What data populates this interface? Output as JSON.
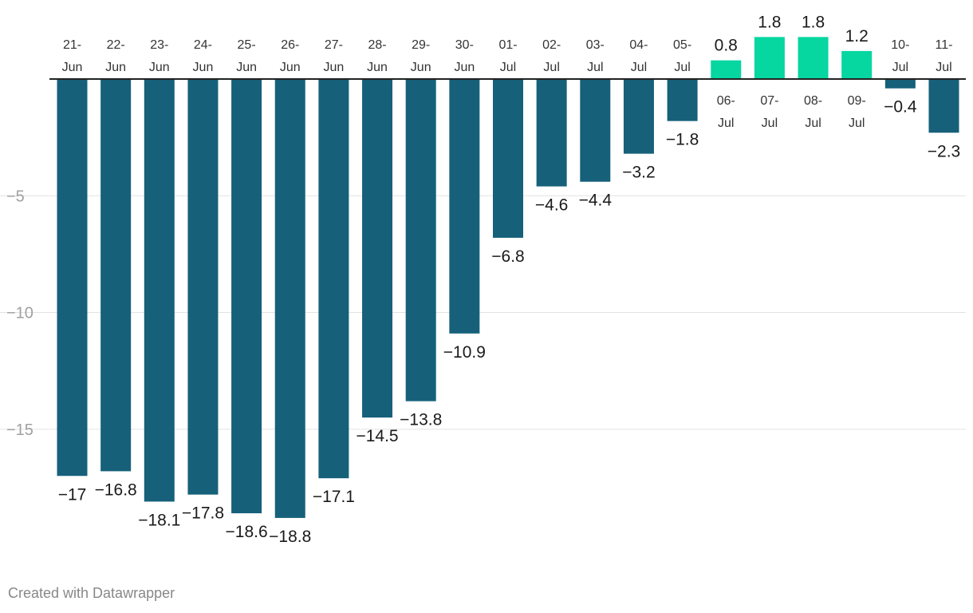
{
  "chart_data": {
    "type": "bar",
    "categories": [
      "21-Jun",
      "22-Jun",
      "23-Jun",
      "24-Jun",
      "25-Jun",
      "26-Jun",
      "27-Jun",
      "28-Jun",
      "29-Jun",
      "30-Jun",
      "01-Jul",
      "02-Jul",
      "03-Jul",
      "04-Jul",
      "05-Jul",
      "06-Jul",
      "07-Jul",
      "08-Jul",
      "09-Jul",
      "10-Jul",
      "11-Jul"
    ],
    "values": [
      -17,
      -16.8,
      -18.1,
      -17.8,
      -18.6,
      -18.8,
      -17.1,
      -14.5,
      -13.8,
      -10.9,
      -6.8,
      -4.6,
      -4.4,
      -3.2,
      -1.8,
      0.8,
      1.8,
      1.8,
      1.2,
      -0.4,
      -2.3
    ],
    "value_labels": [
      "−17",
      "−16.8",
      "−18.1",
      "−17.8",
      "−18.6",
      "−18.8",
      "−17.1",
      "−14.5",
      "−13.8",
      "−10.9",
      "−6.8",
      "−4.6",
      "−4.4",
      "−3.2",
      "−1.8",
      "0.8",
      "1.8",
      "1.8",
      "1.2",
      "−0.4",
      "−2.3"
    ],
    "y_ticks": [
      -5,
      -10,
      -15
    ],
    "y_tick_labels": [
      "−5",
      "−10",
      "−15"
    ],
    "ylim": [
      -18.8,
      1.8
    ],
    "title": "",
    "xlabel": "",
    "ylabel": "",
    "grid": true,
    "colors": {
      "negative": "#16607a",
      "positive": "#06d6a0"
    }
  },
  "footer": {
    "credit": "Created with Datawrapper"
  }
}
